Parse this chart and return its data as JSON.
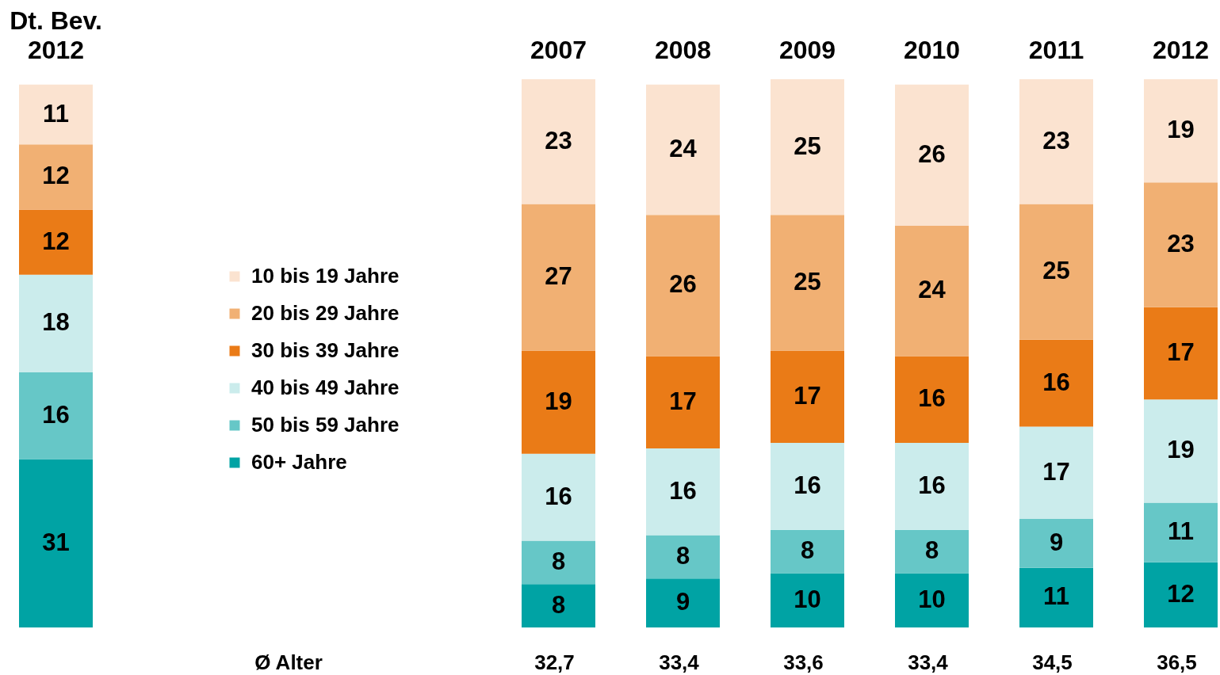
{
  "chart_data": [
    {
      "type": "bar",
      "stacked": true,
      "data_labels": true,
      "categories": [
        "Dt. Bev.\n2012"
      ],
      "series": [
        {
          "color": "#00a3a4",
          "values": [
            31
          ]
        },
        {
          "color": "#66c7c7",
          "values": [
            16
          ]
        },
        {
          "color": "#cbecec",
          "values": [
            18
          ]
        },
        {
          "color": "#ea7b17",
          "values": [
            12
          ]
        },
        {
          "color": "#f1b073",
          "values": [
            12
          ]
        },
        {
          "color": "#fbe3d0",
          "values": [
            11
          ]
        }
      ]
    },
    {
      "type": "bar",
      "stacked": true,
      "data_labels": true,
      "legend": "left",
      "categories": [
        "2007",
        "2008",
        "2009",
        "2010",
        "2011",
        "2012"
      ],
      "series": [
        {
          "name": "60+ Jahre",
          "color": "#00a3a4",
          "values": [
            8,
            9,
            10,
            10,
            11,
            12
          ]
        },
        {
          "name": "50 bis 59 Jahre",
          "color": "#66c7c7",
          "values": [
            8,
            8,
            8,
            8,
            9,
            11
          ]
        },
        {
          "name": "40 bis 49 Jahre",
          "color": "#cbecec",
          "values": [
            16,
            16,
            16,
            16,
            17,
            19
          ]
        },
        {
          "name": "30 bis 39 Jahre",
          "color": "#ea7b17",
          "values": [
            19,
            17,
            17,
            16,
            16,
            17
          ]
        },
        {
          "name": "20 bis 29 Jahre",
          "color": "#f1b073",
          "values": [
            27,
            26,
            25,
            24,
            25,
            23
          ]
        },
        {
          "name": "10 bis 19 Jahre",
          "color": "#fbe3d0",
          "values": [
            23,
            24,
            25,
            26,
            23,
            19
          ]
        }
      ],
      "annotations": [
        "Ø Alter",
        "32,7",
        "33,4",
        "33,6",
        "33,4",
        "34,5",
        "36,5"
      ]
    }
  ]
}
